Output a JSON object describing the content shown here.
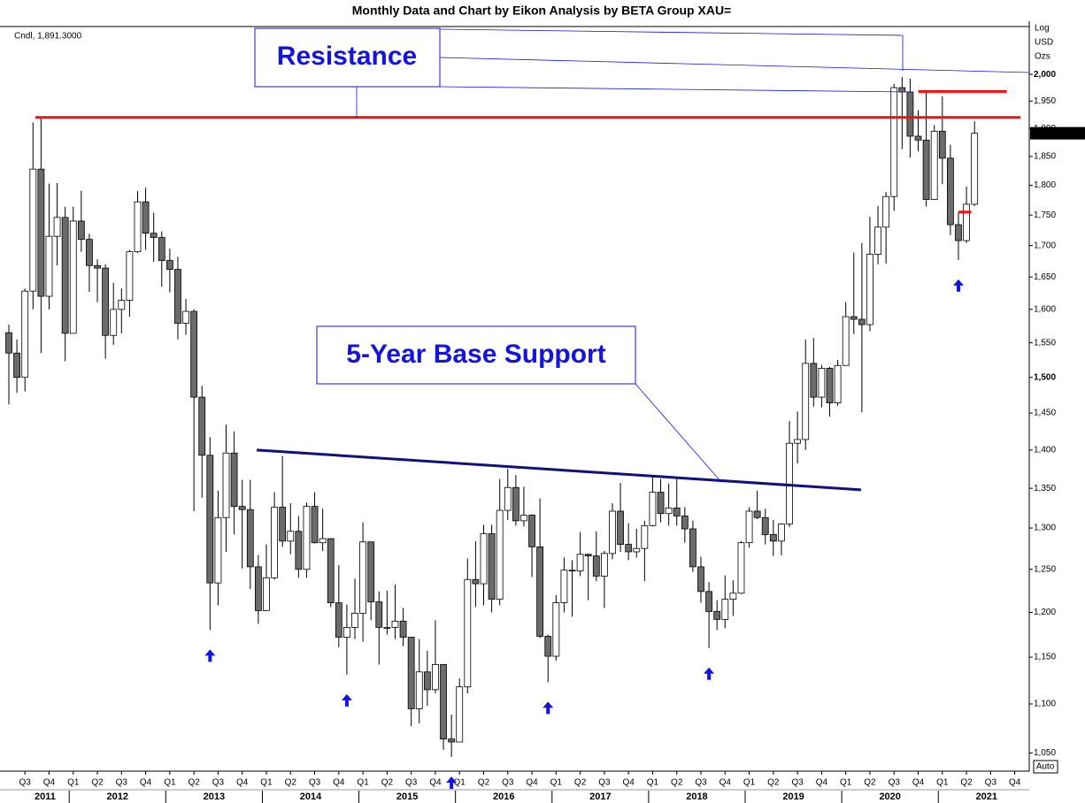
{
  "chart_data": {
    "type": "candlestick",
    "title": "Monthly Data and Chart by Eikon Analysis by BETA Group XAU=",
    "legend_text": "Cndl, 1,891.3000",
    "y_axis_label": [
      "Log",
      "USD",
      "Ozs"
    ],
    "log_scale": true,
    "auto_label": "Auto",
    "last_value": {
      "value": 1891.3,
      "label": "1,891.3000"
    },
    "open": [
      1565,
      1535,
      1500,
      1628,
      1828,
      1620,
      1715,
      1746,
      1564,
      1740,
      1710,
      1668,
      1664,
      1561,
      1600,
      1614,
      1690,
      1772,
      1720,
      1713,
      1676,
      1662,
      1579,
      1597,
      1472,
      1393,
      1234,
      1313,
      1396,
      1327,
      1323,
      1253,
      1202,
      1240,
      1326,
      1284,
      1296,
      1250,
      1327,
      1282,
      1287,
      1211,
      1172,
      1183,
      1199,
      1283,
      1212,
      1183,
      1183,
      1190,
      1172,
      1095,
      1134,
      1115,
      1142,
      1064,
      1061,
      1118,
      1238,
      1233,
      1293,
      1215,
      1322,
      1351,
      1309,
      1316,
      1277,
      1173,
      1151,
      1211,
      1249,
      1248,
      1268,
      1266,
      1242,
      1269,
      1321,
      1280,
      1271,
      1275,
      1303,
      1345,
      1318,
      1325,
      1315,
      1299,
      1253,
      1224,
      1201,
      1192,
      1215,
      1222,
      1282,
      1321,
      1313,
      1292,
      1284,
      1305,
      1409,
      1414,
      1520,
      1472,
      1513,
      1464,
      1517,
      1589,
      1585,
      1577,
      1686,
      1730,
      1781,
      1975,
      1967,
      1886,
      1879,
      1776,
      1895,
      1847,
      1734,
      1708,
      1768
    ],
    "high": [
      1577,
      1555,
      1632,
      1911,
      1920,
      1803,
      1804,
      1764,
      1764,
      1791,
      1719,
      1678,
      1670,
      1641,
      1632,
      1693,
      1790,
      1796,
      1754,
      1723,
      1695,
      1682,
      1616,
      1600,
      1488,
      1417,
      1347,
      1434,
      1425,
      1361,
      1361,
      1267,
      1280,
      1345,
      1392,
      1331,
      1315,
      1332,
      1345,
      1324,
      1287,
      1255,
      1209,
      1239,
      1307,
      1283,
      1224,
      1225,
      1232,
      1205,
      1172,
      1170,
      1157,
      1191,
      1142,
      1089,
      1127,
      1263,
      1284,
      1304,
      1304,
      1362,
      1375,
      1367,
      1352,
      1317,
      1337,
      1175,
      1220,
      1264,
      1261,
      1295,
      1269,
      1296,
      1272,
      1331,
      1357,
      1306,
      1299,
      1309,
      1366,
      1362,
      1356,
      1365,
      1326,
      1309,
      1265,
      1235,
      1214,
      1243,
      1237,
      1284,
      1326,
      1347,
      1324,
      1310,
      1306,
      1439,
      1452,
      1555,
      1557,
      1518,
      1515,
      1525,
      1611,
      1689,
      1704,
      1747,
      1765,
      1789,
      1982,
      1995,
      1992,
      1933,
      1966,
      1906,
      1959,
      1871,
      1755,
      1798,
      1913
    ],
    "low": [
      1462,
      1478,
      1480,
      1600,
      1535,
      1600,
      1668,
      1523,
      1564,
      1690,
      1627,
      1611,
      1527,
      1547,
      1564,
      1589,
      1688,
      1693,
      1674,
      1635,
      1626,
      1555,
      1562,
      1321,
      1338,
      1180,
      1208,
      1271,
      1292,
      1251,
      1227,
      1187,
      1202,
      1238,
      1277,
      1268,
      1240,
      1240,
      1281,
      1272,
      1206,
      1161,
      1131,
      1170,
      1167,
      1191,
      1142,
      1175,
      1170,
      1162,
      1077,
      1080,
      1098,
      1111,
      1053,
      1046,
      1061,
      1111,
      1206,
      1208,
      1200,
      1208,
      1310,
      1303,
      1302,
      1241,
      1171,
      1123,
      1146,
      1200,
      1195,
      1242,
      1214,
      1236,
      1205,
      1262,
      1271,
      1261,
      1264,
      1236,
      1302,
      1307,
      1303,
      1303,
      1282,
      1247,
      1211,
      1160,
      1180,
      1182,
      1196,
      1221,
      1276,
      1311,
      1280,
      1266,
      1267,
      1301,
      1382,
      1400,
      1459,
      1458,
      1445,
      1460,
      1517,
      1563,
      1451,
      1567,
      1670,
      1671,
      1757,
      1863,
      1848,
      1859,
      1764,
      1775,
      1802,
      1717,
      1677,
      1704,
      1765
    ],
    "close": [
      1535,
      1500,
      1628,
      1828,
      1620,
      1715,
      1746,
      1564,
      1740,
      1710,
      1668,
      1664,
      1561,
      1600,
      1614,
      1690,
      1772,
      1720,
      1713,
      1676,
      1662,
      1579,
      1597,
      1472,
      1393,
      1234,
      1313,
      1396,
      1327,
      1323,
      1253,
      1202,
      1240,
      1326,
      1284,
      1296,
      1250,
      1327,
      1282,
      1287,
      1211,
      1172,
      1183,
      1199,
      1283,
      1212,
      1183,
      1183,
      1190,
      1172,
      1095,
      1134,
      1115,
      1142,
      1064,
      1061,
      1118,
      1238,
      1233,
      1293,
      1215,
      1322,
      1351,
      1309,
      1316,
      1277,
      1173,
      1151,
      1211,
      1249,
      1248,
      1268,
      1266,
      1242,
      1269,
      1321,
      1280,
      1271,
      1275,
      1303,
      1345,
      1318,
      1325,
      1315,
      1299,
      1253,
      1224,
      1201,
      1192,
      1215,
      1222,
      1282,
      1321,
      1313,
      1292,
      1284,
      1305,
      1409,
      1414,
      1520,
      1472,
      1513,
      1464,
      1517,
      1589,
      1585,
      1577,
      1686,
      1730,
      1781,
      1975,
      1967,
      1886,
      1879,
      1776,
      1895,
      1847,
      1734,
      1708,
      1768,
      1891.3
    ],
    "up_color": "#ffffff",
    "down_color": "#6b6b6b",
    "xlim": [
      -1.1,
      126.8
    ],
    "xticks": [
      {
        "value": 2,
        "label": "Q3"
      },
      {
        "value": 5,
        "label": "Q4"
      },
      {
        "value": 8,
        "label": "Q1"
      },
      {
        "value": 11,
        "label": "Q2"
      },
      {
        "value": 14,
        "label": "Q3"
      },
      {
        "value": 17,
        "label": "Q4"
      },
      {
        "value": 20,
        "label": "Q1"
      },
      {
        "value": 23,
        "label": "Q2"
      },
      {
        "value": 26,
        "label": "Q3"
      },
      {
        "value": 29,
        "label": "Q4"
      },
      {
        "value": 32,
        "label": "Q1"
      },
      {
        "value": 35,
        "label": "Q2"
      },
      {
        "value": 38,
        "label": "Q3"
      },
      {
        "value": 41,
        "label": "Q4"
      },
      {
        "value": 44,
        "label": "Q1"
      },
      {
        "value": 47,
        "label": "Q2"
      },
      {
        "value": 50,
        "label": "Q3"
      },
      {
        "value": 53,
        "label": "Q4"
      },
      {
        "value": 56,
        "label": "Q1"
      },
      {
        "value": 59,
        "label": "Q2"
      },
      {
        "value": 62,
        "label": "Q3"
      },
      {
        "value": 65,
        "label": "Q4"
      },
      {
        "value": 68,
        "label": "Q1"
      },
      {
        "value": 71,
        "label": "Q2"
      },
      {
        "value": 74,
        "label": "Q3"
      },
      {
        "value": 77,
        "label": "Q4"
      },
      {
        "value": 80,
        "label": "Q1"
      },
      {
        "value": 83,
        "label": "Q2"
      },
      {
        "value": 86,
        "label": "Q3"
      },
      {
        "value": 89,
        "label": "Q4"
      },
      {
        "value": 92,
        "label": "Q1"
      },
      {
        "value": 95,
        "label": "Q2"
      },
      {
        "value": 98,
        "label": "Q3"
      },
      {
        "value": 101,
        "label": "Q4"
      },
      {
        "value": 104,
        "label": "Q1"
      },
      {
        "value": 107,
        "label": "Q2"
      },
      {
        "value": 110,
        "label": "Q3"
      },
      {
        "value": 113,
        "label": "Q4"
      },
      {
        "value": 116,
        "label": "Q1"
      },
      {
        "value": 119,
        "label": "Q2"
      },
      {
        "value": 122,
        "label": "Q3"
      },
      {
        "value": 125,
        "label": "Q4"
      }
    ],
    "year_ticks": [
      {
        "value": -4,
        "label": "2011"
      },
      {
        "value": 8,
        "label": "2012"
      },
      {
        "value": 20,
        "label": "2013"
      },
      {
        "value": 32,
        "label": "2014"
      },
      {
        "value": 44,
        "label": "2015"
      },
      {
        "value": 56,
        "label": "2016"
      },
      {
        "value": 68,
        "label": "2017"
      },
      {
        "value": 80,
        "label": "2018"
      },
      {
        "value": 92,
        "label": "2019"
      },
      {
        "value": 104,
        "label": "2020"
      },
      {
        "value": 116,
        "label": "2021"
      }
    ],
    "ylim": [
      1032,
      2093
    ],
    "yticks": [
      {
        "value": 1050,
        "label": "1,050"
      },
      {
        "value": 1100,
        "label": "1,100"
      },
      {
        "value": 1150,
        "label": "1,150"
      },
      {
        "value": 1200,
        "label": "1,200"
      },
      {
        "value": 1250,
        "label": "1,250"
      },
      {
        "value": 1300,
        "label": "1,300"
      },
      {
        "value": 1350,
        "label": "1,350"
      },
      {
        "value": 1400,
        "label": "1,400"
      },
      {
        "value": 1450,
        "label": "1,450"
      },
      {
        "value": 1500,
        "label": "1,500"
      },
      {
        "value": 1550,
        "label": "1,550"
      },
      {
        "value": 1600,
        "label": "1,600"
      },
      {
        "value": 1650,
        "label": "1,650"
      },
      {
        "value": 1700,
        "label": "1,700"
      },
      {
        "value": 1750,
        "label": "1,750"
      },
      {
        "value": 1800,
        "label": "1,800"
      },
      {
        "value": 1850,
        "label": "1,850"
      },
      {
        "value": 1900,
        "label": "1,900"
      },
      {
        "value": 1950,
        "label": "1,950"
      },
      {
        "value": 2000,
        "label": "2,000"
      }
    ],
    "resistance_levels": [
      1920,
      1968,
      1755
    ],
    "resistance_color": "#ee1111",
    "support_line": [
      1400,
      1348
    ],
    "support_color": "#101080",
    "annotations": [
      "Resistance",
      "5-Year Base Support"
    ]
  }
}
